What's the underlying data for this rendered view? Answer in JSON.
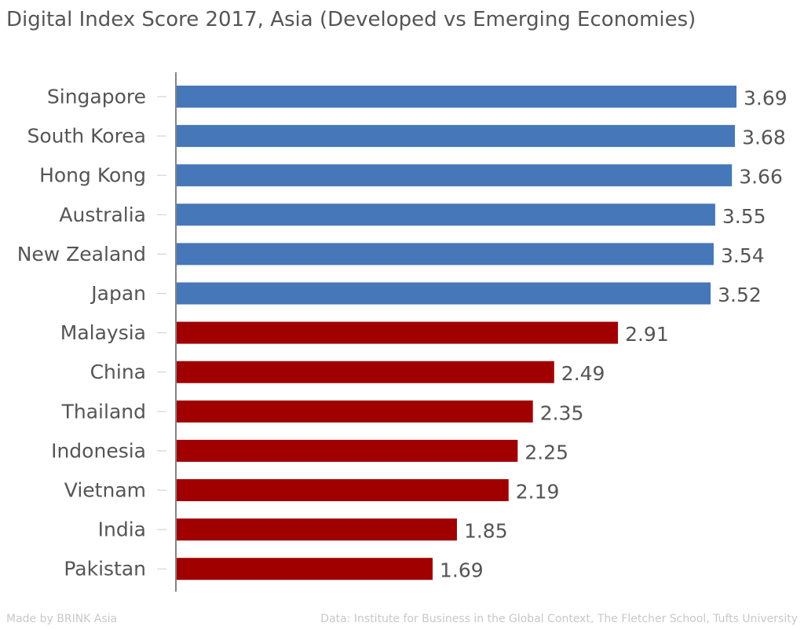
{
  "chart_data": {
    "type": "bar",
    "orientation": "horizontal",
    "title": "Digital Index Score 2017, Asia (Developed vs Emerging Economies)",
    "categories": [
      "Singapore",
      "South Korea",
      "Hong Kong",
      "Australia",
      "New Zealand",
      "Japan",
      "Malaysia",
      "China",
      "Thailand",
      "Indonesia",
      "Vietnam",
      "India",
      "Pakistan"
    ],
    "values": [
      3.69,
      3.68,
      3.66,
      3.55,
      3.54,
      3.52,
      2.91,
      2.49,
      2.35,
      2.25,
      2.19,
      1.85,
      1.69
    ],
    "value_labels": [
      "3.69",
      "3.68",
      "3.66",
      "3.55",
      "3.54",
      "3.52",
      "2.91",
      "2.49",
      "2.35",
      "2.25",
      "2.19",
      "1.85",
      "1.69"
    ],
    "groups": [
      "developed",
      "developed",
      "developed",
      "developed",
      "developed",
      "developed",
      "emerging",
      "emerging",
      "emerging",
      "emerging",
      "emerging",
      "emerging",
      "emerging"
    ],
    "colors": {
      "developed": "#4677b8",
      "emerging": "#a00000"
    },
    "xlabel": "",
    "ylabel": "",
    "xlim": [
      0,
      3.69
    ],
    "grid": false,
    "legend": "none"
  },
  "footer": {
    "credit": "Made by BRINK Asia",
    "source": "Data: Institute for Business in the Global Context, The Fletcher School, Tufts University"
  }
}
